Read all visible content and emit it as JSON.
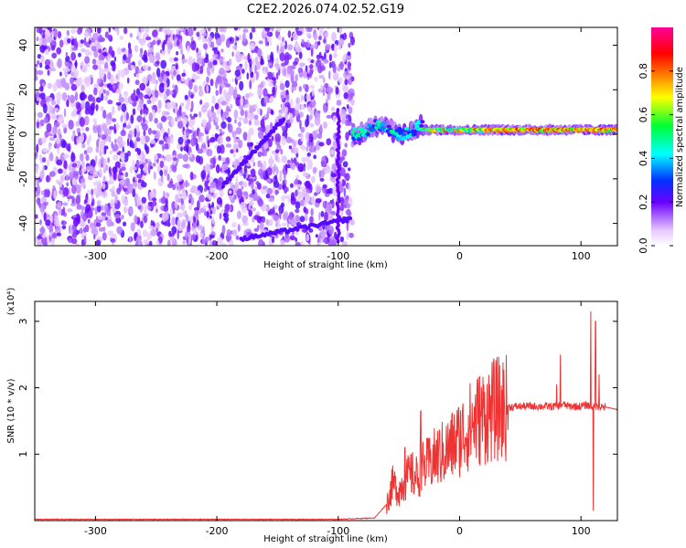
{
  "title": "C2E2.2026.074.02.52.G19",
  "colors": {
    "snr_line": "#ee3333",
    "background": "#ffffff",
    "axis": "#000000"
  },
  "chart_data": [
    {
      "type": "heatmap",
      "title": "C2E2.2026.074.02.52.G19",
      "xlabel": "Height of straight line (km)",
      "ylabel": "Frequency (Hz)",
      "xlim": [
        -350,
        130
      ],
      "ylim": [
        -50,
        48
      ],
      "xticks": [
        -300,
        -200,
        -100,
        0,
        100
      ],
      "yticks": [
        -40,
        -20,
        0,
        20,
        40
      ],
      "colorbar": {
        "label": "Normalized spectral amplitude",
        "range": [
          0,
          1
        ],
        "ticks": [
          "0.0",
          "0.2",
          "0.4",
          "0.6",
          "0.8"
        ],
        "tick_values": [
          0,
          0.2,
          0.4,
          0.6,
          0.8
        ],
        "colormap": "rainbow"
      },
      "features": {
        "noise_region_x": [
          -350,
          -88
        ],
        "signal_region_x": [
          -88,
          130
        ],
        "signal_frequency_hz": 2,
        "diagonal_trace": {
          "x_start": -195,
          "y_start": -23,
          "x_end": -145,
          "y_end": 7
        },
        "lower_trace": {
          "x_start": -180,
          "y_start": -47,
          "x_end": -90,
          "y_end": -38
        }
      }
    },
    {
      "type": "line",
      "xlabel": "Height of straight line (km)",
      "ylabel": "SNR (10 * v/v)",
      "y_scale_label": "(x10⁴)",
      "xlim": [
        -350,
        130
      ],
      "ylim": [
        0,
        3.3
      ],
      "xticks": [
        -300,
        -200,
        -100,
        0,
        100
      ],
      "yticks": [
        1,
        2,
        3
      ],
      "series": [
        {
          "x": [
            -350,
            -300,
            -250,
            -200,
            -150,
            -100,
            -70,
            -60,
            -55,
            -50,
            -45,
            -40,
            -35,
            -30,
            -25,
            -20,
            -15,
            -10,
            -5,
            0,
            5,
            10,
            15,
            20,
            25,
            30,
            35,
            40,
            50,
            60,
            70,
            75,
            80,
            85,
            90,
            95,
            100,
            105,
            108,
            110,
            112,
            115,
            120,
            130
          ],
          "y": [
            0.02,
            0.02,
            0.02,
            0.02,
            0.02,
            0.02,
            0.04,
            0.25,
            0.55,
            0.45,
            0.6,
            0.7,
            0.65,
            0.8,
            0.85,
            0.95,
            1.0,
            1.05,
            1.15,
            1.25,
            1.35,
            1.45,
            1.52,
            1.58,
            1.63,
            1.67,
            1.69,
            1.71,
            1.72,
            1.72,
            1.72,
            1.72,
            1.72,
            1.75,
            1.72,
            1.72,
            1.72,
            1.74,
            1.72,
            1.72,
            1.72,
            1.72,
            1.71,
            1.67
          ]
        }
      ]
    }
  ]
}
